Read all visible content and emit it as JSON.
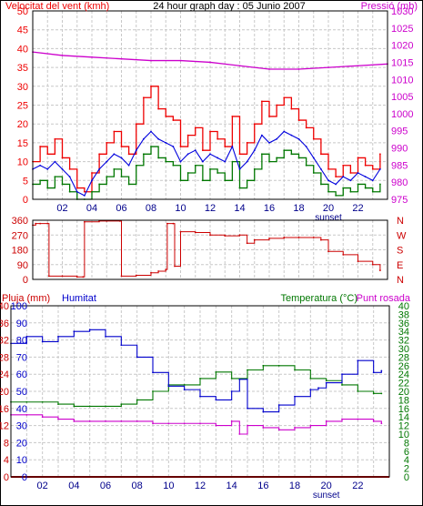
{
  "colors": {
    "wind": "#ee0000",
    "wind_avg": "#0000dd",
    "wind_gust_low": "#007700",
    "pressure": "#cc00cc",
    "direction": "#cc0000",
    "rain": "#cc0000",
    "humidity": "#0000cc",
    "temperature": "#007700",
    "dewpoint": "#cc00cc",
    "grid": "#c8c8c8"
  },
  "chart_data": [
    {
      "type": "line",
      "title": "24 hour graph day : 05 Junio 2007",
      "ylabel": "Velocitat del vent (kmh)",
      "y2label": "Pressió (mb)",
      "ylim": [
        0,
        50
      ],
      "y2lim": [
        975,
        1030
      ],
      "yticks": [
        "0",
        "5",
        "10",
        "15",
        "20",
        "25",
        "30",
        "35",
        "40",
        "45",
        "50"
      ],
      "y2ticks": [
        "975",
        "980",
        "985",
        "990",
        "995",
        "1000",
        "1005",
        "1010",
        "1015",
        "1020",
        "1025",
        "1030"
      ],
      "xlim": [
        0,
        24
      ],
      "xticks": [
        "02",
        "04",
        "06",
        "08",
        "10",
        "12",
        "14",
        "16",
        "18",
        "20",
        "22"
      ],
      "x_annotation": "sunset",
      "x_annotation_at": 20,
      "series": [
        {
          "key": "gust",
          "x": [
            0,
            0.5,
            1,
            1.5,
            2,
            2.5,
            3,
            3.5,
            4,
            4.5,
            5,
            5.5,
            6,
            6.5,
            7,
            7.5,
            8,
            8.5,
            9,
            9.5,
            10,
            10.5,
            11,
            11.5,
            12,
            12.5,
            13,
            13.5,
            14,
            14.5,
            15,
            15.5,
            16,
            16.5,
            17,
            17.5,
            18,
            18.5,
            19,
            19.5,
            20,
            20.5,
            21,
            21.5,
            22,
            22.5,
            23,
            23.5
          ],
          "values": [
            10,
            14,
            12,
            16,
            11,
            8,
            3,
            2,
            7,
            12,
            15,
            18,
            14,
            12,
            20,
            27,
            30,
            24,
            22,
            21,
            14,
            17,
            19,
            13,
            18,
            16,
            14,
            22,
            12,
            15,
            20,
            26,
            22,
            25,
            27,
            24,
            21,
            19,
            16,
            12,
            8,
            6,
            9,
            7,
            11,
            9,
            8,
            12
          ]
        },
        {
          "key": "avg",
          "x": [
            0,
            0.5,
            1,
            1.5,
            2,
            2.5,
            3,
            3.5,
            4,
            4.5,
            5,
            5.5,
            6,
            6.5,
            7,
            7.5,
            8,
            8.5,
            9,
            9.5,
            10,
            10.5,
            11,
            11.5,
            12,
            12.5,
            13,
            13.5,
            14,
            14.5,
            15,
            15.5,
            16,
            16.5,
            17,
            17.5,
            18,
            18.5,
            19,
            19.5,
            20,
            20.5,
            21,
            21.5,
            22,
            22.5,
            23,
            23.5
          ],
          "values": [
            8,
            9,
            8,
            10,
            8,
            6,
            2,
            1,
            5,
            8,
            10,
            12,
            11,
            9,
            13,
            16,
            18,
            16,
            15,
            14,
            10,
            12,
            13,
            10,
            12,
            11,
            10,
            14,
            8,
            10,
            13,
            17,
            15,
            16,
            18,
            17,
            16,
            14,
            11,
            8,
            5,
            4,
            6,
            5,
            7,
            6,
            5,
            8
          ]
        },
        {
          "key": "low",
          "x": [
            0,
            0.5,
            1,
            1.5,
            2,
            2.5,
            3,
            3.5,
            4,
            4.5,
            5,
            5.5,
            6,
            6.5,
            7,
            7.5,
            8,
            8.5,
            9,
            9.5,
            10,
            10.5,
            11,
            11.5,
            12,
            12.5,
            13,
            13.5,
            14,
            14.5,
            15,
            15.5,
            16,
            16.5,
            17,
            17.5,
            18,
            18.5,
            19,
            19.5,
            20,
            20.5,
            21,
            21.5,
            22,
            22.5,
            23,
            23.5
          ],
          "values": [
            4,
            5,
            3,
            6,
            4,
            2,
            0,
            0,
            2,
            4,
            6,
            8,
            6,
            4,
            9,
            12,
            14,
            11,
            10,
            9,
            5,
            7,
            9,
            5,
            8,
            7,
            5,
            10,
            3,
            5,
            8,
            12,
            10,
            11,
            13,
            12,
            11,
            9,
            7,
            4,
            2,
            1,
            3,
            2,
            4,
            3,
            2,
            4
          ]
        },
        {
          "key": "pressure",
          "axis": "y2",
          "x": [
            0,
            2,
            4,
            6,
            8,
            10,
            12,
            14,
            16,
            18,
            20,
            22,
            24
          ],
          "values": [
            1018,
            1017,
            1016.5,
            1016,
            1015.5,
            1015.5,
            1015,
            1014,
            1013,
            1013,
            1013.5,
            1014,
            1014.5
          ]
        }
      ]
    },
    {
      "type": "line",
      "ylim": [
        0,
        360
      ],
      "yticks": [
        "0",
        "90",
        "180",
        "270",
        "360"
      ],
      "y2ticks": [
        "N",
        "W",
        "S",
        "E",
        "N"
      ],
      "xlim": [
        0,
        24
      ],
      "series": [
        {
          "key": "direction",
          "x": [
            0,
            0.2,
            0.5,
            1.0,
            1.1,
            2,
            3,
            3.4,
            3.5,
            4.5,
            5,
            5.9,
            6.0,
            7,
            8,
            8.5,
            9,
            9.1,
            9.5,
            9.6,
            10,
            11,
            12,
            13,
            14,
            14.5,
            15,
            16,
            17,
            18,
            19,
            19.5,
            20,
            21,
            22,
            23,
            23.5
          ],
          "values": [
            330,
            340,
            340,
            340,
            20,
            20,
            15,
            15,
            350,
            355,
            355,
            355,
            20,
            25,
            40,
            50,
            60,
            340,
            340,
            80,
            290,
            285,
            270,
            265,
            270,
            220,
            240,
            250,
            255,
            255,
            255,
            240,
            170,
            150,
            110,
            90,
            55
          ]
        }
      ]
    },
    {
      "type": "line",
      "ylabel": "Pluja (mm)",
      "ylabel2": "Humitat",
      "y2label": "Temperatura (°C)",
      "y2label2": "Punt rosada",
      "ylim": [
        0,
        100
      ],
      "yticks": [
        "0",
        "10",
        "20",
        "30",
        "40",
        "50",
        "60",
        "70",
        "80",
        "90",
        "100"
      ],
      "y_rain_ticks": [
        "0",
        "4",
        "8",
        "12",
        "16",
        "20",
        "24",
        "28",
        "32",
        "36",
        "40"
      ],
      "y2lim": [
        0,
        40
      ],
      "y2ticks": [
        "0",
        "2",
        "4",
        "6",
        "8",
        "10",
        "12",
        "14",
        "16",
        "18",
        "20",
        "22",
        "24",
        "26",
        "28",
        "30",
        "32",
        "34",
        "36",
        "38",
        "40"
      ],
      "xlim": [
        0,
        24
      ],
      "xticks": [
        "02",
        "04",
        "06",
        "08",
        "10",
        "12",
        "14",
        "16",
        "18",
        "20",
        "22"
      ],
      "x_annotation": "sunset",
      "x_annotation_at": 20,
      "series": [
        {
          "key": "rain",
          "x": [
            0,
            24
          ],
          "values": [
            0,
            0
          ]
        },
        {
          "key": "humidity",
          "x": [
            0,
            1,
            2,
            3,
            4,
            5,
            6,
            7,
            8,
            9,
            10,
            11,
            12,
            13,
            14,
            14.5,
            15,
            16,
            17,
            18,
            19,
            19.5,
            20,
            21,
            22,
            23,
            23.5
          ],
          "values": [
            78,
            82,
            79,
            82,
            85,
            86,
            82,
            77,
            70,
            61,
            53,
            51,
            47,
            45,
            50,
            57,
            40,
            38,
            42,
            47,
            51,
            52,
            55,
            60,
            68,
            61,
            62
          ]
        },
        {
          "key": "temperature",
          "x": [
            0,
            1,
            2,
            3,
            4,
            5,
            6,
            7,
            8,
            9,
            10,
            11,
            12,
            13,
            14,
            15,
            16,
            17,
            18,
            19,
            20,
            21,
            22,
            23,
            23.5
          ],
          "values": [
            17.5,
            17.5,
            17.5,
            17,
            16.5,
            16.5,
            16.5,
            17,
            18,
            20,
            21.5,
            21.5,
            23,
            24.5,
            23,
            25,
            26,
            26,
            25,
            23,
            22.5,
            21.5,
            20,
            19.5,
            19.5
          ]
        },
        {
          "key": "dewpoint",
          "x": [
            0,
            1,
            2,
            3,
            4,
            5,
            6,
            7,
            8,
            9,
            10,
            11,
            12,
            13,
            14,
            14.5,
            15,
            16,
            17,
            18,
            19,
            20,
            21,
            22,
            23,
            23.5
          ],
          "values": [
            14.5,
            14.5,
            14,
            13.5,
            13,
            13,
            13,
            13,
            13,
            12.5,
            12.5,
            12.5,
            12.5,
            12,
            13,
            10,
            12,
            11.5,
            11,
            11.5,
            12,
            13,
            13.5,
            13.5,
            13,
            12.5
          ]
        }
      ]
    }
  ]
}
